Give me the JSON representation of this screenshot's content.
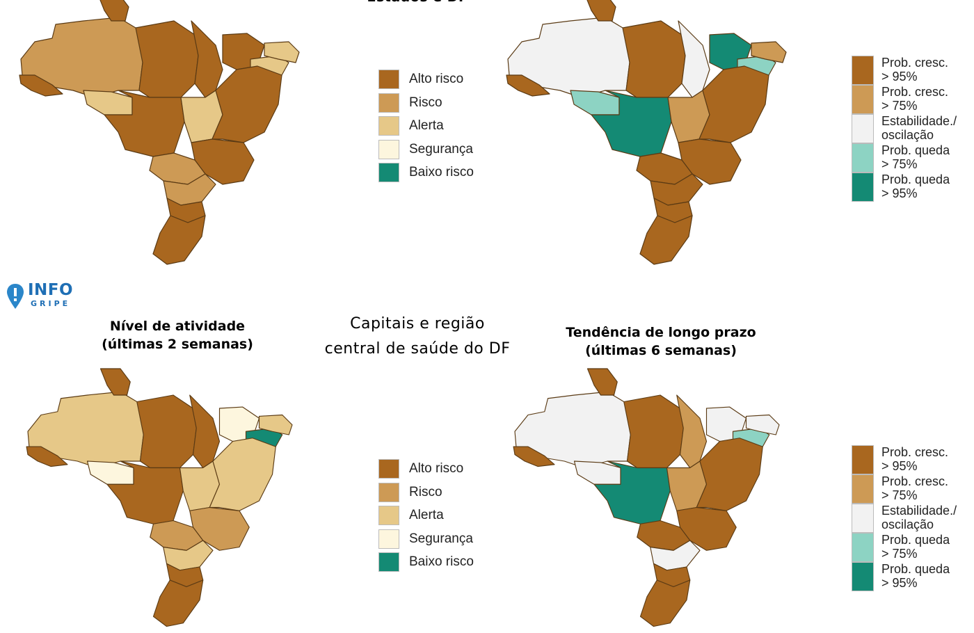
{
  "top_center_title": "Estados e DF",
  "bottom_center_title_line1": "Capitais e região",
  "bottom_center_title_line2": "central de saúde do DF",
  "bottom_left_title_line1": "Nível de atividade",
  "bottom_left_title_line2": "(últimas 2 semanas)",
  "bottom_right_title_line1": "Tendência de longo prazo",
  "bottom_right_title_line2": "(últimas 6 semanas)",
  "logo": {
    "main": "INFO",
    "sub": "GRIPE"
  },
  "activity_legend": [
    {
      "label": "Alto risco",
      "color": "#a9671f"
    },
    {
      "label": "Risco",
      "color": "#cd9a55"
    },
    {
      "label": "Alerta",
      "color": "#e6c888"
    },
    {
      "label": "Segurança",
      "color": "#fdf6de"
    },
    {
      "label": "Baixo risco",
      "color": "#148a74"
    }
  ],
  "trend_legend": [
    {
      "line1": "Prob. cresc.",
      "line2": "> 95%",
      "color": "#a9671f"
    },
    {
      "line1": "Prob. cresc.",
      "line2": "> 75%",
      "color": "#cd9a55"
    },
    {
      "line1": "Estabilidade./",
      "line2": "oscilação",
      "color": "#f2f2f2"
    },
    {
      "line1": "Prob. queda",
      "line2": "> 75%",
      "color": "#8dd3c3"
    },
    {
      "line1": "Prob. queda",
      "line2": "> 95%",
      "color": "#148a74"
    }
  ],
  "palette": {
    "high": "#a9671f",
    "risk": "#cd9a55",
    "alert": "#e6c888",
    "safe": "#fdf6de",
    "low": "#148a74",
    "stable": "#f2f2f2",
    "fall75": "#8dd3c3",
    "fall95": "#148a74"
  },
  "maps": {
    "top_activity": {
      "north_west": "risk",
      "north_west_tail": "high",
      "south_west_pocket": "alert",
      "north_center": "high",
      "north_top": "high",
      "north_east_a": "high",
      "north_east_b": "high",
      "center_mid": "high",
      "center_east": "alert",
      "north_east_coast": "alert",
      "east_coast": "high",
      "south_east": "high",
      "center_south": "risk",
      "south_a": "risk",
      "south_b": "high",
      "south_c": "high",
      "east_small": "alert"
    },
    "top_trend": {
      "north_west": "stable",
      "north_west_tail": "high",
      "south_west_pocket": "fall75",
      "north_center": "high",
      "north_top": "high",
      "north_east_a": "stable",
      "north_east_b": "fall95",
      "center_mid": "fall95",
      "center_east": "risk",
      "north_east_coast": "risk",
      "east_coast": "high",
      "south_east": "high",
      "center_south": "high",
      "south_a": "high",
      "south_b": "high",
      "south_c": "high",
      "east_small": "fall75"
    },
    "bottom_activity": {
      "north_west": "alert",
      "north_west_tail": "high",
      "south_west_pocket": "safe",
      "north_center": "high",
      "north_top": "high",
      "north_east_a": "high",
      "north_east_b": "safe",
      "center_mid": "high",
      "center_east": "alert",
      "north_east_coast": "alert",
      "east_coast": "alert",
      "south_east": "risk",
      "center_south": "risk",
      "south_a": "alert",
      "south_b": "high",
      "south_c": "high",
      "east_small": "low"
    },
    "bottom_trend": {
      "north_west": "stable",
      "north_west_tail": "high",
      "south_west_pocket": "stable",
      "north_center": "high",
      "north_top": "high",
      "north_east_a": "risk",
      "north_east_b": "stable",
      "center_mid": "fall95",
      "center_east": "risk",
      "north_east_coast": "stable",
      "east_coast": "high",
      "south_east": "high",
      "center_south": "high",
      "south_a": "stable",
      "south_b": "high",
      "south_c": "high",
      "east_small": "fall75"
    }
  }
}
